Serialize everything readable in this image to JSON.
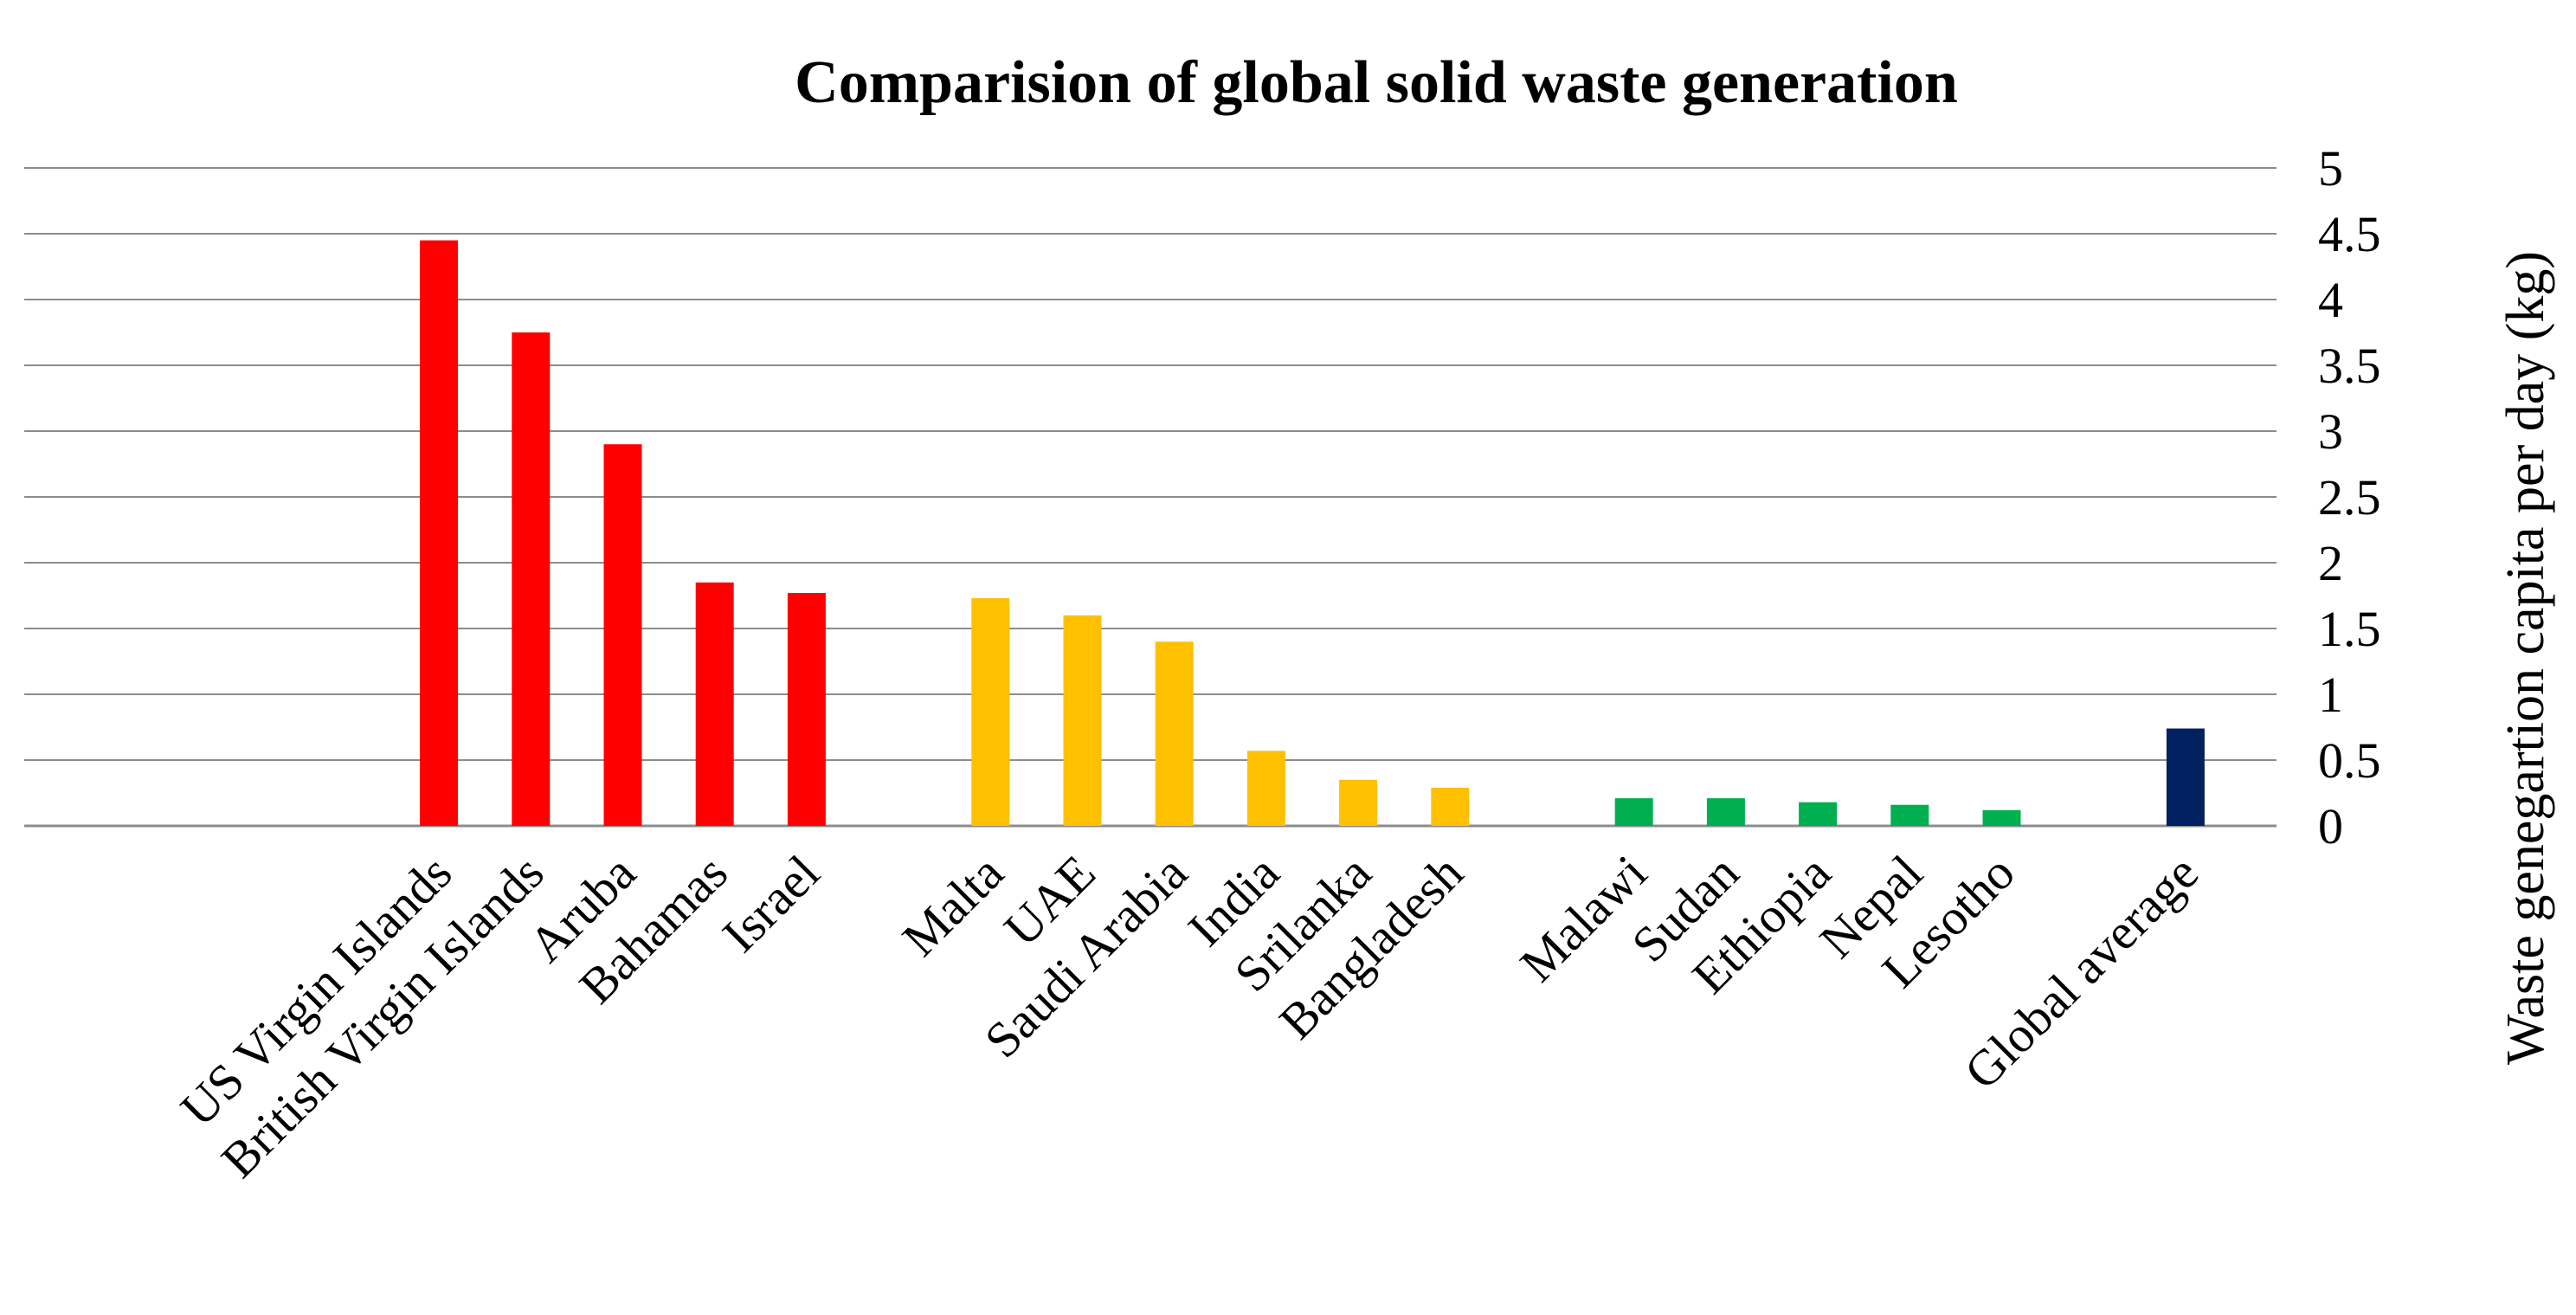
{
  "chart_data": {
    "type": "bar",
    "title": "Comparision of global solid waste generation",
    "xlabel": "",
    "ylabel": "Waste genegartion capita per day (kg)",
    "ylim": [
      0,
      5
    ],
    "yticks": [
      "0",
      "0.5",
      "1",
      "1.5",
      "2",
      "2.5",
      "3",
      "3.5",
      "4",
      "4.5",
      "5"
    ],
    "grid": true,
    "groups": [
      {
        "color": "#ff0000",
        "bars": [
          {
            "label": "US Virgin Islands",
            "value": 4.45
          },
          {
            "label": "British Virgin Islands",
            "value": 3.75
          },
          {
            "label": "Aruba",
            "value": 2.9
          },
          {
            "label": "Bahamas",
            "value": 1.85
          },
          {
            "label": "Israel",
            "value": 1.77
          }
        ]
      },
      {
        "color": "#ffc000",
        "bars": [
          {
            "label": "Malta",
            "value": 1.73
          },
          {
            "label": "UAE",
            "value": 1.6
          },
          {
            "label": "Saudi Arabia",
            "value": 1.4
          },
          {
            "label": "India",
            "value": 0.57
          },
          {
            "label": "Srilanka",
            "value": 0.35
          },
          {
            "label": "Bangladesh",
            "value": 0.29
          }
        ]
      },
      {
        "color": "#00b050",
        "bars": [
          {
            "label": "Malawi",
            "value": 0.21
          },
          {
            "label": "Sudan",
            "value": 0.21
          },
          {
            "label": "Ethiopia",
            "value": 0.18
          },
          {
            "label": "Nepal",
            "value": 0.16
          },
          {
            "label": "Lesotho",
            "value": 0.12
          }
        ]
      },
      {
        "color": "#002060",
        "bars": [
          {
            "label": "Global average",
            "value": 0.74
          }
        ]
      }
    ]
  }
}
